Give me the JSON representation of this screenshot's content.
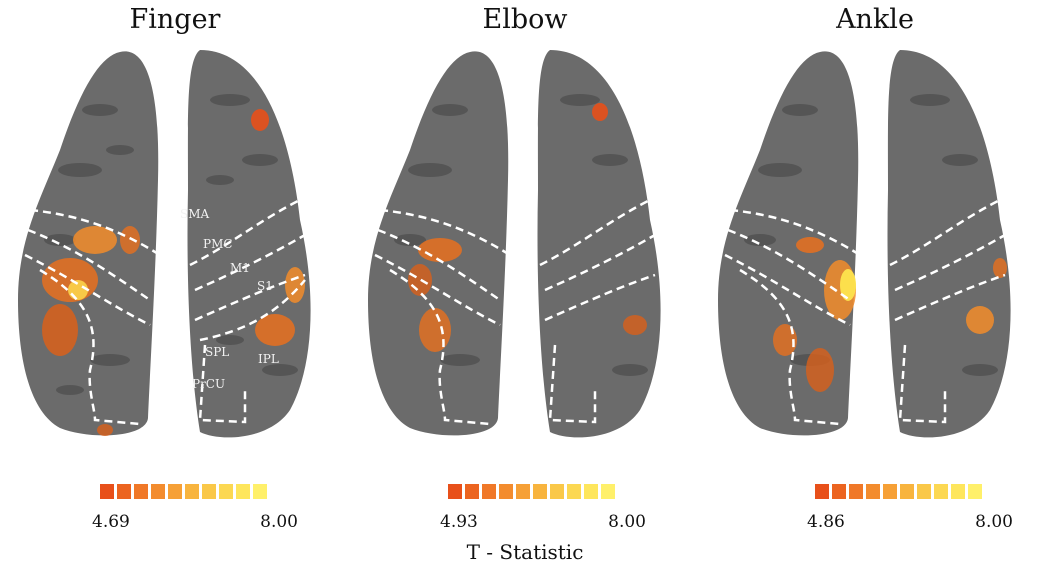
{
  "panels": [
    {
      "title": "Finger",
      "scale": {
        "min": "4.69",
        "max": "8.00"
      }
    },
    {
      "title": "Elbow",
      "scale": {
        "min": "4.93",
        "max": "8.00"
      }
    },
    {
      "title": "Ankle",
      "scale": {
        "min": "4.86",
        "max": "8.00"
      }
    }
  ],
  "roi_labels": {
    "sma": "SMA",
    "pmc": "PMC",
    "m1": "M1",
    "s1": "S1",
    "spl": "SPL",
    "ipl": "IPL",
    "prcu": "PrCU"
  },
  "colorbar": {
    "colors": [
      "#e8501a",
      "#ec6420",
      "#f07828",
      "#f38c2e",
      "#f6a036",
      "#f8b43e",
      "#fac848",
      "#fcd852",
      "#fee65c",
      "#fff06a"
    ]
  },
  "stat_label": "T - Statistic"
}
